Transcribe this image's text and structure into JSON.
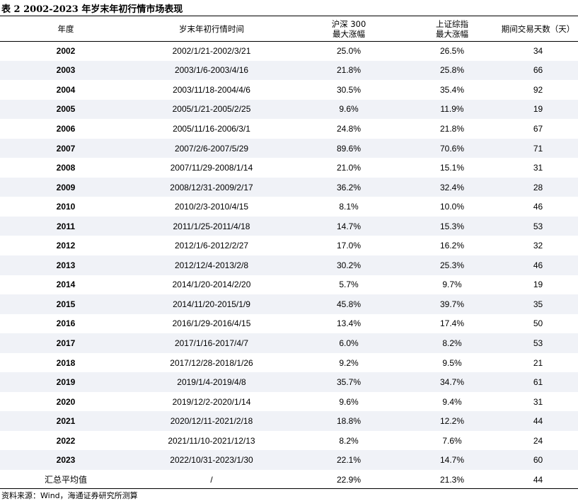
{
  "title": "表 2 2002-2023 年岁末年初行情市场表现",
  "columns": [
    "年度",
    "岁末年初行情时间",
    "沪深 300",
    "最大涨幅",
    "上证综指",
    "最大涨幅",
    "期间交易天数（天）"
  ],
  "rows": [
    [
      "2002",
      "2002/1/21-2002/3/21",
      "25.0%",
      "26.5%",
      "34"
    ],
    [
      "2003",
      "2003/1/6-2003/4/16",
      "21.8%",
      "25.8%",
      "66"
    ],
    [
      "2004",
      "2003/11/18-2004/4/6",
      "30.5%",
      "35.4%",
      "92"
    ],
    [
      "2005",
      "2005/1/21-2005/2/25",
      "9.6%",
      "11.9%",
      "19"
    ],
    [
      "2006",
      "2005/11/16-2006/3/1",
      "24.8%",
      "21.8%",
      "67"
    ],
    [
      "2007",
      "2007/2/6-2007/5/29",
      "89.6%",
      "70.6%",
      "71"
    ],
    [
      "2008",
      "2007/11/29-2008/1/14",
      "21.0%",
      "15.1%",
      "31"
    ],
    [
      "2009",
      "2008/12/31-2009/2/17",
      "36.2%",
      "32.4%",
      "28"
    ],
    [
      "2010",
      "2010/2/3-2010/4/15",
      "8.1%",
      "10.0%",
      "46"
    ],
    [
      "2011",
      "2011/1/25-2011/4/18",
      "14.7%",
      "15.3%",
      "53"
    ],
    [
      "2012",
      "2012/1/6-2012/2/27",
      "17.0%",
      "16.2%",
      "32"
    ],
    [
      "2013",
      "2012/12/4-2013/2/8",
      "30.2%",
      "25.3%",
      "46"
    ],
    [
      "2014",
      "2014/1/20-2014/2/20",
      "5.7%",
      "9.7%",
      "19"
    ],
    [
      "2015",
      "2014/11/20-2015/1/9",
      "45.8%",
      "39.7%",
      "35"
    ],
    [
      "2016",
      "2016/1/29-2016/4/15",
      "13.4%",
      "17.4%",
      "50"
    ],
    [
      "2017",
      "2017/1/16-2017/4/7",
      "6.0%",
      "8.2%",
      "53"
    ],
    [
      "2018",
      "2017/12/28-2018/1/26",
      "9.2%",
      "9.5%",
      "21"
    ],
    [
      "2019",
      "2019/1/4-2019/4/8",
      "35.7%",
      "34.7%",
      "61"
    ],
    [
      "2020",
      "2019/12/2-2020/1/14",
      "9.6%",
      "9.4%",
      "31"
    ],
    [
      "2021",
      "2020/12/11-2021/2/18",
      "18.8%",
      "12.2%",
      "44"
    ],
    [
      "2022",
      "2021/11/10-2021/12/13",
      "8.2%",
      "7.6%",
      "24"
    ],
    [
      "2023",
      "2022/10/31-2023/1/30",
      "22.1%",
      "14.7%",
      "60"
    ],
    [
      "汇总平均值",
      "/",
      "22.9%",
      "21.3%",
      "44"
    ]
  ],
  "source": "资料来源：Wind，海通证券研究所测算",
  "colors": {
    "shade": "#f0f2f7",
    "rule": "#000000"
  }
}
